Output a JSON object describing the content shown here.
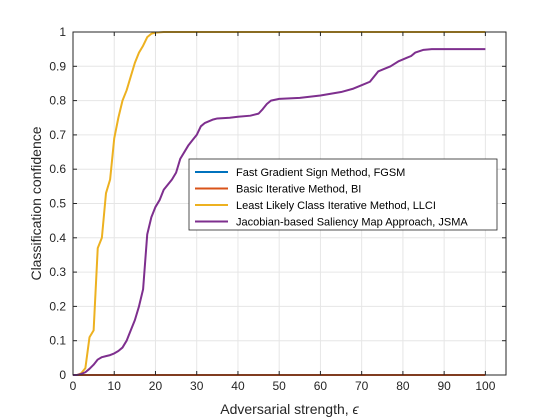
{
  "chart_data": {
    "type": "line",
    "xlabel": "Adversarial strength, ",
    "xlabel_symbol": "ϵ",
    "ylabel": "Classification confidence",
    "xlim": [
      0,
      105
    ],
    "ylim": [
      0,
      1
    ],
    "grid": true,
    "legend_placement": "center-right",
    "x_ticks": [
      "0",
      "10",
      "20",
      "30",
      "40",
      "50",
      "60",
      "70",
      "80",
      "90",
      "100"
    ],
    "y_ticks": [
      "0",
      "0.1",
      "0.2",
      "0.3",
      "0.4",
      "0.5",
      "0.6",
      "0.7",
      "0.8",
      "0.9",
      "1"
    ],
    "series": [
      {
        "name": "Fast Gradient Sign Method, FGSM",
        "color": "#0072bd",
        "points": [
          [
            0,
            0
          ],
          [
            100,
            0
          ]
        ]
      },
      {
        "name": "Basic Iterative Method, BI",
        "color": "#d95319",
        "points": [
          [
            0,
            0
          ],
          [
            100,
            0
          ]
        ]
      },
      {
        "name": "Least Likely Class Iterative Method, LLCI",
        "color": "#edb120",
        "points": [
          [
            0,
            0
          ],
          [
            1,
            0
          ],
          [
            2,
            0.005
          ],
          [
            3,
            0.02
          ],
          [
            4,
            0.11
          ],
          [
            5,
            0.13
          ],
          [
            6,
            0.37
          ],
          [
            7,
            0.4
          ],
          [
            8,
            0.53
          ],
          [
            9,
            0.57
          ],
          [
            10,
            0.69
          ],
          [
            11,
            0.75
          ],
          [
            12,
            0.8
          ],
          [
            13,
            0.83
          ],
          [
            14,
            0.87
          ],
          [
            15,
            0.91
          ],
          [
            16,
            0.94
          ],
          [
            17,
            0.96
          ],
          [
            18,
            0.985
          ],
          [
            19,
            0.995
          ],
          [
            20,
            0.998
          ],
          [
            22,
            1
          ],
          [
            30,
            1
          ],
          [
            100,
            1
          ]
        ]
      },
      {
        "name": "Jacobian-based Saliency Map Approach, JSMA",
        "color": "#7e2f8e",
        "points": [
          [
            0,
            0
          ],
          [
            1,
            0
          ],
          [
            2,
            0.003
          ],
          [
            3,
            0.008
          ],
          [
            4,
            0.018
          ],
          [
            5,
            0.03
          ],
          [
            6,
            0.045
          ],
          [
            7,
            0.052
          ],
          [
            8,
            0.055
          ],
          [
            9,
            0.058
          ],
          [
            10,
            0.063
          ],
          [
            11,
            0.07
          ],
          [
            12,
            0.08
          ],
          [
            13,
            0.1
          ],
          [
            14,
            0.13
          ],
          [
            15,
            0.16
          ],
          [
            16,
            0.2
          ],
          [
            17,
            0.25
          ],
          [
            18,
            0.41
          ],
          [
            19,
            0.46
          ],
          [
            20,
            0.49
          ],
          [
            21,
            0.51
          ],
          [
            22,
            0.54
          ],
          [
            23,
            0.555
          ],
          [
            24,
            0.57
          ],
          [
            25,
            0.59
          ],
          [
            26,
            0.63
          ],
          [
            27,
            0.65
          ],
          [
            28,
            0.67
          ],
          [
            29,
            0.685
          ],
          [
            30,
            0.7
          ],
          [
            31,
            0.725
          ],
          [
            32,
            0.735
          ],
          [
            33,
            0.74
          ],
          [
            34,
            0.745
          ],
          [
            35,
            0.748
          ],
          [
            38,
            0.75
          ],
          [
            40,
            0.753
          ],
          [
            43,
            0.756
          ],
          [
            45,
            0.762
          ],
          [
            46,
            0.775
          ],
          [
            47,
            0.79
          ],
          [
            48,
            0.8
          ],
          [
            50,
            0.805
          ],
          [
            55,
            0.808
          ],
          [
            60,
            0.815
          ],
          [
            65,
            0.825
          ],
          [
            68,
            0.835
          ],
          [
            70,
            0.845
          ],
          [
            72,
            0.855
          ],
          [
            73,
            0.87
          ],
          [
            74,
            0.885
          ],
          [
            75,
            0.89
          ],
          [
            77,
            0.9
          ],
          [
            79,
            0.915
          ],
          [
            81,
            0.925
          ],
          [
            82,
            0.93
          ],
          [
            83,
            0.94
          ],
          [
            85,
            0.948
          ],
          [
            87,
            0.95
          ],
          [
            90,
            0.95
          ],
          [
            100,
            0.95
          ]
        ]
      }
    ]
  }
}
